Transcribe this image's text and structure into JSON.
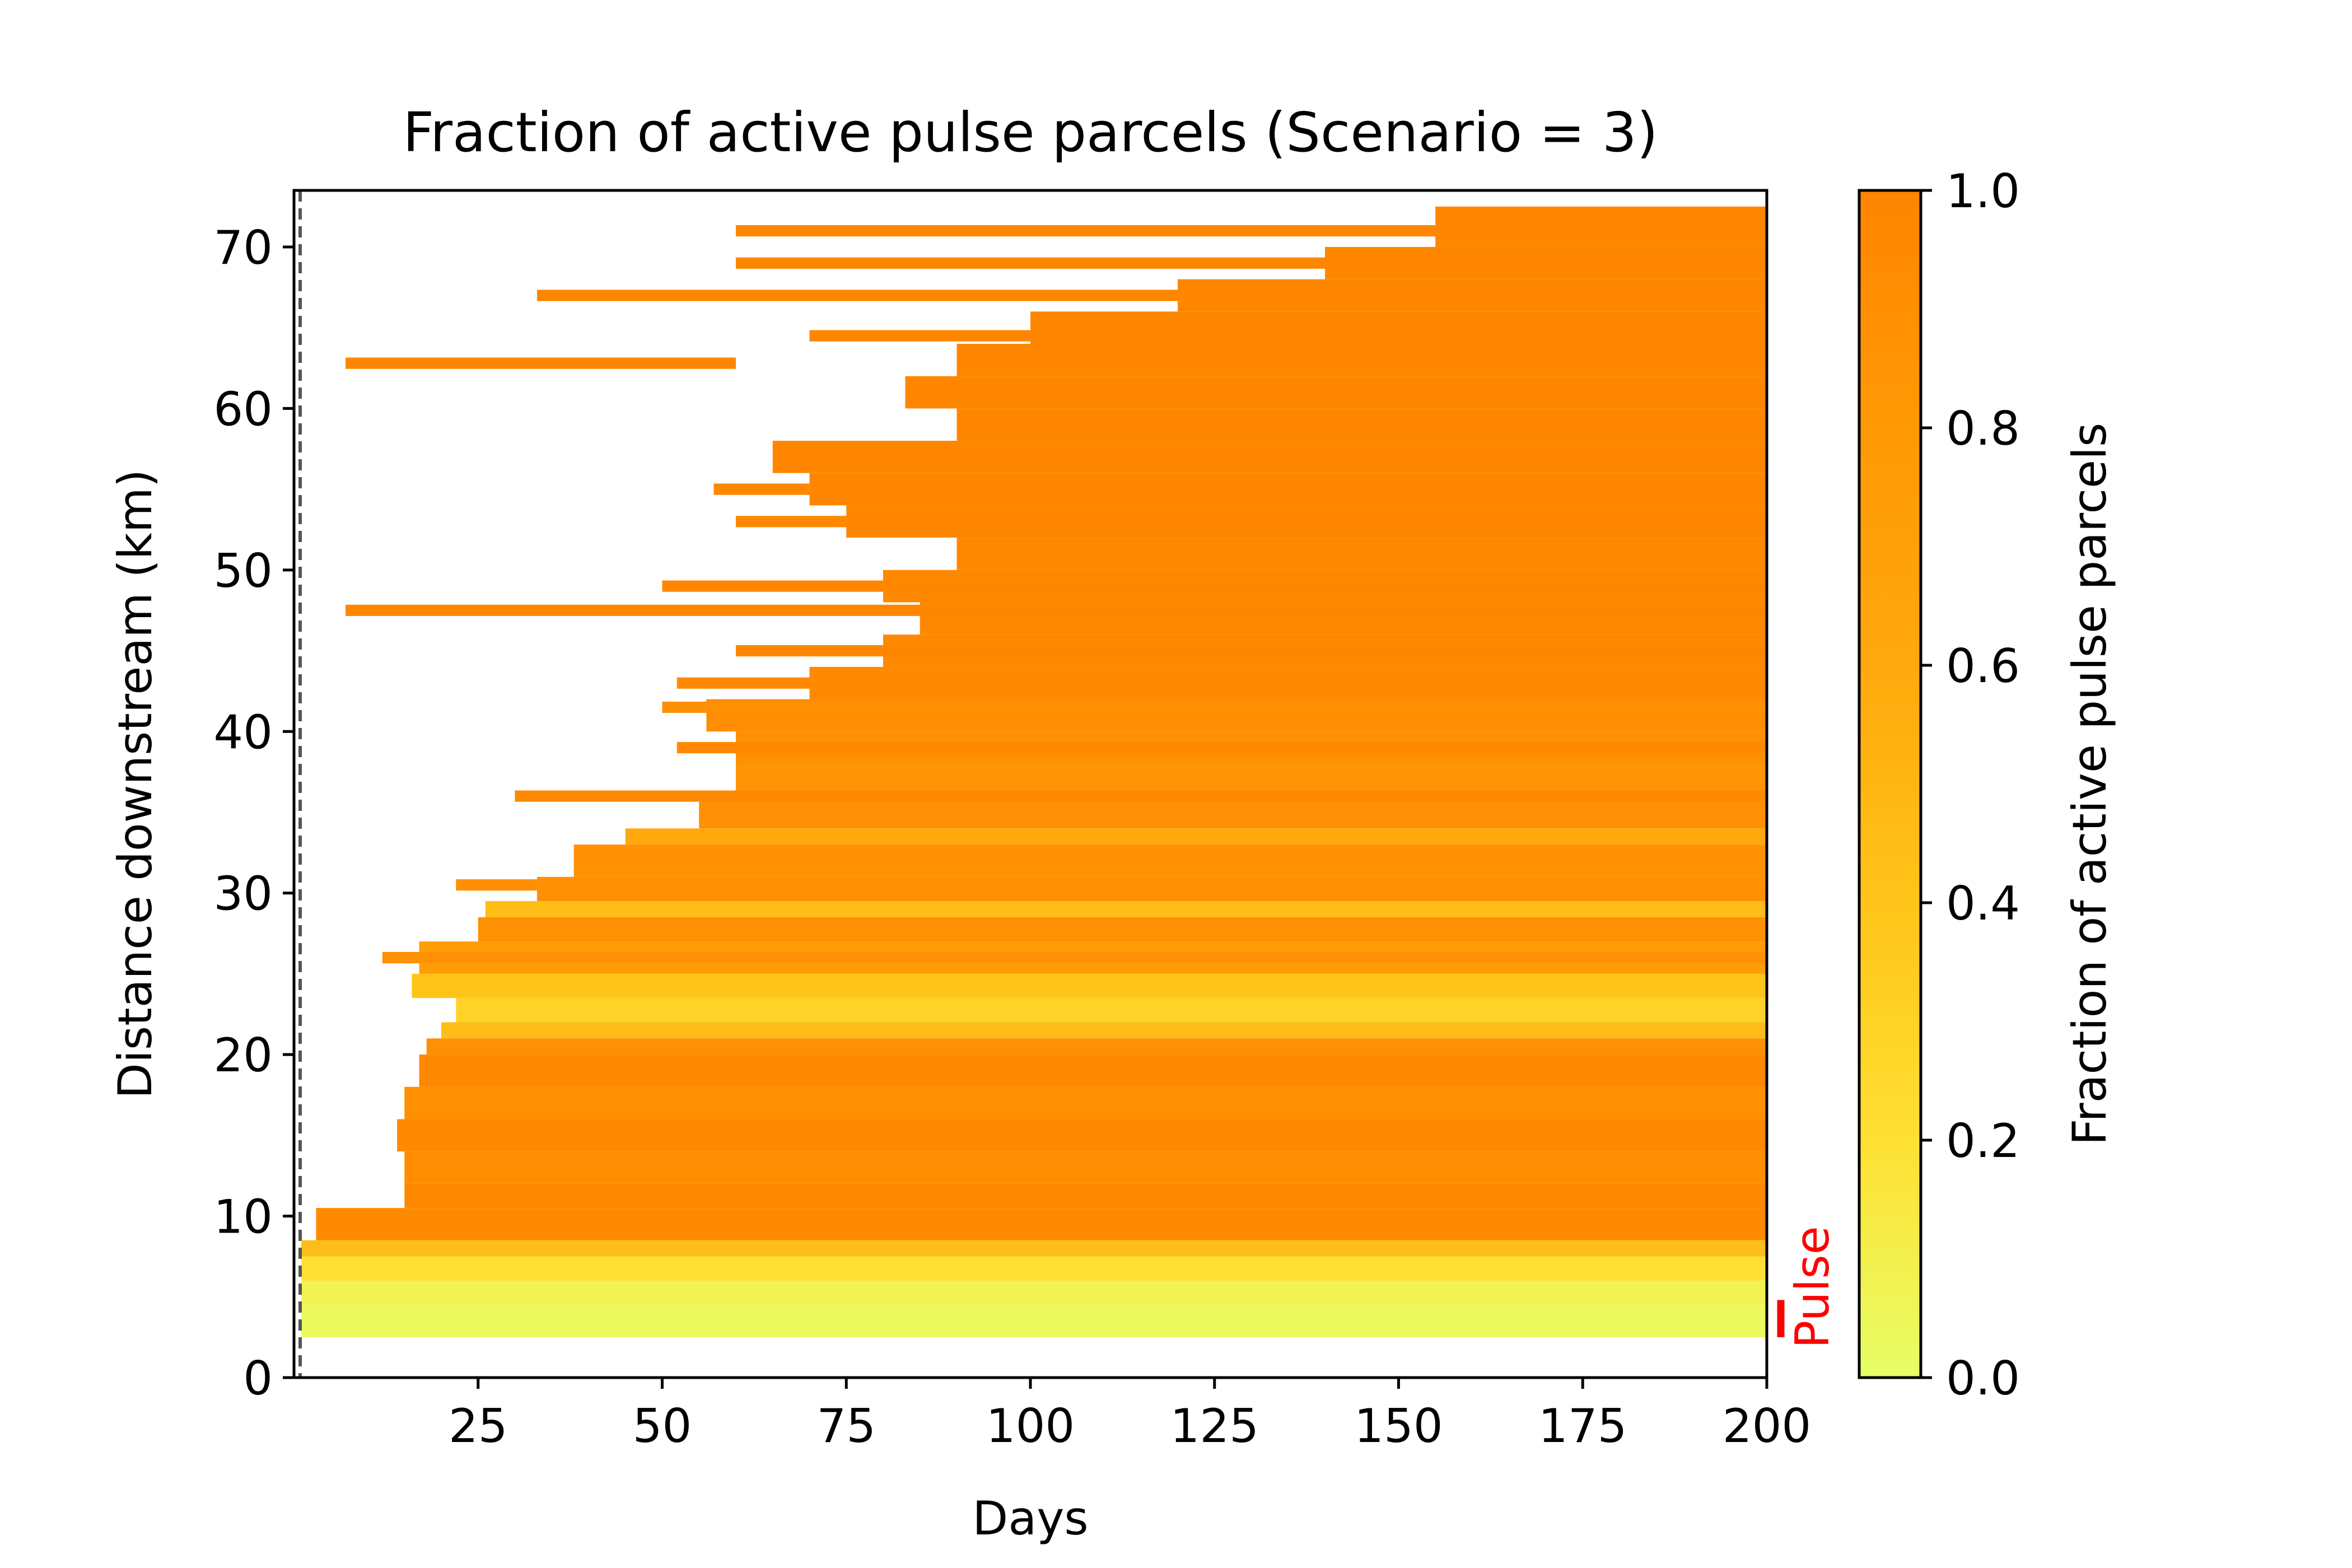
{
  "chart_data": {
    "type": "heatmap",
    "title": "Fraction of active pulse parcels (Scenario = 3)",
    "xlabel": "Days",
    "ylabel": "Distance downstream (km)",
    "xlim": [
      0,
      200
    ],
    "ylim": [
      0,
      73.5
    ],
    "x_ticks": [
      25,
      50,
      75,
      100,
      125,
      150,
      175,
      200
    ],
    "y_ticks": [
      0,
      10,
      20,
      30,
      40,
      50,
      60,
      70
    ],
    "colorbar": {
      "label": "Fraction of active pulse parcels",
      "range": [
        0.0,
        1.0
      ],
      "ticks": [
        "0.0",
        "0.2",
        "0.4",
        "0.6",
        "0.8",
        "1.0"
      ],
      "colors": [
        "#e6ff66",
        "#ffe033",
        "#ffc41a",
        "#ffa80d",
        "#ff9905",
        "#ff8500"
      ]
    },
    "pulse_annotation": {
      "label": "Pulse",
      "color": "#ff0000",
      "y_range": [
        2.5,
        4.8
      ]
    },
    "bands": [
      {
        "y0": 2.5,
        "y1": 4.5,
        "x_start": 1,
        "value": 0.03
      },
      {
        "y0": 4.5,
        "y1": 6.0,
        "x_start": 1,
        "value": 0.08
      },
      {
        "y0": 6.0,
        "y1": 7.5,
        "x_start": 1,
        "value": 0.2
      },
      {
        "y0": 7.5,
        "y1": 8.5,
        "x_start": 1,
        "value": 0.45
      },
      {
        "y0": 8.5,
        "y1": 10.5,
        "x_start": 3,
        "value": 0.95
      },
      {
        "y0": 10.5,
        "y1": 12.0,
        "x_start": 15,
        "value": 0.97
      },
      {
        "y0": 12.0,
        "y1": 14.0,
        "x_start": 15,
        "value": 0.92
      },
      {
        "y0": 14.0,
        "y1": 16.0,
        "x_start": 14,
        "value": 0.95
      },
      {
        "y0": 16.0,
        "y1": 18.0,
        "x_start": 15,
        "value": 0.9
      },
      {
        "y0": 18.0,
        "y1": 20.0,
        "x_start": 17,
        "value": 0.97
      },
      {
        "y0": 20.0,
        "y1": 21.0,
        "x_start": 18,
        "value": 0.9
      },
      {
        "y0": 21.0,
        "y1": 22.0,
        "x_start": 20,
        "value": 0.45
      },
      {
        "y0": 22.0,
        "y1": 23.5,
        "x_start": 22,
        "value": 0.3
      },
      {
        "y0": 23.5,
        "y1": 25.0,
        "x_start": 16,
        "value": 0.4
      },
      {
        "y0": 25.0,
        "y1": 27.0,
        "x_start": 17,
        "value": 0.75
      },
      {
        "y0": 27.0,
        "y1": 28.5,
        "x_start": 25,
        "value": 0.9
      },
      {
        "y0": 28.5,
        "y1": 29.5,
        "x_start": 26,
        "value": 0.45
      },
      {
        "y0": 29.5,
        "y1": 31.0,
        "x_start": 33,
        "value": 0.9
      },
      {
        "y0": 31.0,
        "y1": 33.0,
        "x_start": 38,
        "value": 0.88
      },
      {
        "y0": 33.0,
        "y1": 34.0,
        "x_start": 45,
        "value": 0.6
      },
      {
        "y0": 34.0,
        "y1": 36.0,
        "x_start": 55,
        "value": 0.9
      },
      {
        "y0": 36.0,
        "y1": 38.0,
        "x_start": 60,
        "value": 0.85
      },
      {
        "y0": 38.0,
        "y1": 40.0,
        "x_start": 60,
        "value": 0.9
      },
      {
        "y0": 40.0,
        "y1": 42.0,
        "x_start": 56,
        "value": 0.92
      },
      {
        "y0": 42.0,
        "y1": 44.0,
        "x_start": 70,
        "value": 0.95
      },
      {
        "y0": 44.0,
        "y1": 46.0,
        "x_start": 80,
        "value": 0.97
      },
      {
        "y0": 46.0,
        "y1": 48.0,
        "x_start": 85,
        "value": 0.97
      },
      {
        "y0": 48.0,
        "y1": 50.0,
        "x_start": 80,
        "value": 0.97
      },
      {
        "y0": 50.0,
        "y1": 52.0,
        "x_start": 90,
        "value": 0.97
      },
      {
        "y0": 52.0,
        "y1": 54.0,
        "x_start": 75,
        "value": 0.98
      },
      {
        "y0": 54.0,
        "y1": 56.0,
        "x_start": 70,
        "value": 0.98
      },
      {
        "y0": 56.0,
        "y1": 58.0,
        "x_start": 65,
        "value": 0.98
      },
      {
        "y0": 58.0,
        "y1": 60.0,
        "x_start": 90,
        "value": 0.98
      },
      {
        "y0": 60.0,
        "y1": 62.0,
        "x_start": 83,
        "value": 0.98
      },
      {
        "y0": 62.0,
        "y1": 64.0,
        "x_start": 90,
        "value": 0.98
      },
      {
        "y0": 64.0,
        "y1": 66.0,
        "x_start": 100,
        "value": 0.98
      },
      {
        "y0": 66.0,
        "y1": 68.0,
        "x_start": 120,
        "value": 0.98
      },
      {
        "y0": 68.0,
        "y1": 70.0,
        "x_start": 140,
        "value": 0.98
      },
      {
        "y0": 70.0,
        "y1": 72.5,
        "x_start": 155,
        "value": 0.98
      }
    ],
    "streaks": [
      {
        "y": 47.5,
        "x0": 7,
        "x1": 200,
        "value": 0.98
      },
      {
        "y": 62.8,
        "x0": 7,
        "x1": 60,
        "value": 0.98
      },
      {
        "y": 67.0,
        "x0": 33,
        "x1": 200,
        "value": 0.98
      },
      {
        "y": 69.0,
        "x0": 60,
        "x1": 200,
        "value": 0.98
      },
      {
        "y": 71.0,
        "x0": 60,
        "x1": 200,
        "value": 0.98
      },
      {
        "y": 64.5,
        "x0": 70,
        "x1": 200,
        "value": 0.98
      },
      {
        "y": 55.0,
        "x0": 57,
        "x1": 200,
        "value": 0.98
      },
      {
        "y": 53.0,
        "x0": 60,
        "x1": 200,
        "value": 0.98
      },
      {
        "y": 49.0,
        "x0": 50,
        "x1": 200,
        "value": 0.98
      },
      {
        "y": 45.0,
        "x0": 60,
        "x1": 200,
        "value": 0.98
      },
      {
        "y": 43.0,
        "x0": 52,
        "x1": 200,
        "value": 0.95
      },
      {
        "y": 41.5,
        "x0": 50,
        "x1": 200,
        "value": 0.9
      },
      {
        "y": 39.0,
        "x0": 52,
        "x1": 200,
        "value": 0.95
      },
      {
        "y": 36.0,
        "x0": 30,
        "x1": 200,
        "value": 0.95
      },
      {
        "y": 30.5,
        "x0": 22,
        "x1": 200,
        "value": 0.9
      },
      {
        "y": 26.0,
        "x0": 12,
        "x1": 200,
        "value": 0.9
      }
    ]
  }
}
